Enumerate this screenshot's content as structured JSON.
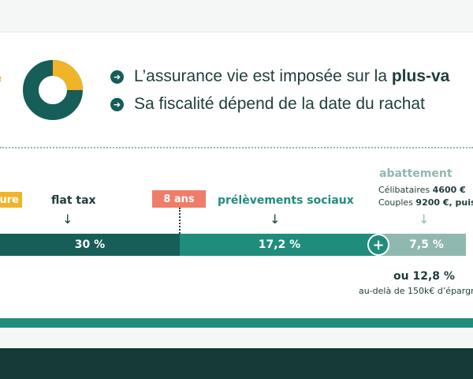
{
  "colors": {
    "dark_teal": "#175d58",
    "teal": "#1f8c7c",
    "light_teal": "#8fb8b0",
    "yellow": "#f0b429",
    "salmon": "#ef7d6a",
    "footer": "#163a36"
  },
  "donut": {
    "teal_fraction": 0.75,
    "yellow_fraction": 0.25
  },
  "bullets": [
    {
      "icon": "arrow-right-circle-icon",
      "text": "L’assurance vie est imposée sur la ",
      "bold": "plus-va"
    },
    {
      "icon": "arrow-right-circle-icon",
      "text": "Sa fiscalité dépend de la date du rachat"
    }
  ],
  "left_partial_text": "e",
  "tags": {
    "yellow_label": "ure",
    "eight_years": "8 ans"
  },
  "labels": {
    "flat_tax": "flat tax",
    "prelevements": "prélèvements sociaux",
    "abattement": "abattement"
  },
  "abattement_lines": {
    "line1_prefix": "Célibataires ",
    "line1_value": "4600 €",
    "line2_prefix": "Couples ",
    "line2_value": "9200 €, puis"
  },
  "bars": {
    "flat_tax": "30 %",
    "prelev": "17,2 %",
    "abattement": "7,5 %"
  },
  "plus_symbol": "+",
  "down_arrow": "↓",
  "notes": {
    "ou": "ou 12,8 %",
    "audela": "au-delà de 150k€ d’épargn"
  }
}
